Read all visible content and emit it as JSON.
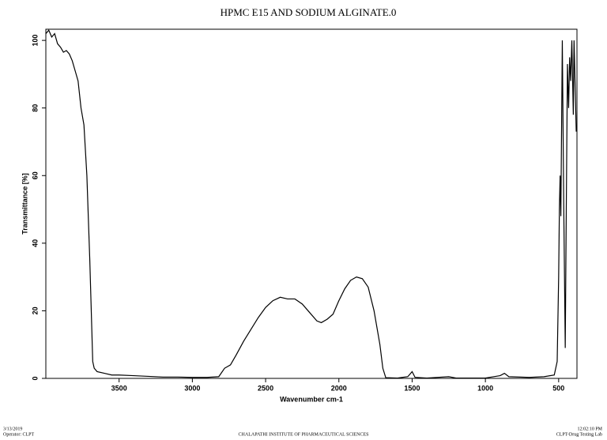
{
  "chart_data": {
    "type": "line",
    "title": "HPMC E15 AND SODIUM ALGINATE.0",
    "x_label": "Wavenumber cm-1",
    "y_label": "Transmittance [%]",
    "xlim": [
      4000,
      375
    ],
    "ylim": [
      0,
      103.3
    ],
    "xticks": [
      3500,
      3000,
      2500,
      2000,
      1500,
      1000,
      500
    ],
    "yticks": [
      0,
      20,
      40,
      60,
      80,
      100
    ],
    "color": "#000000",
    "x": [
      4000,
      3980,
      3960,
      3940,
      3920,
      3900,
      3880,
      3860,
      3840,
      3820,
      3800,
      3780,
      3760,
      3740,
      3720,
      3700,
      3690,
      3680,
      3670,
      3650,
      3600,
      3550,
      3500,
      3400,
      3300,
      3200,
      3100,
      3000,
      2900,
      2820,
      2780,
      2740,
      2700,
      2650,
      2600,
      2550,
      2500,
      2450,
      2400,
      2350,
      2300,
      2250,
      2200,
      2150,
      2120,
      2080,
      2040,
      2000,
      1960,
      1920,
      1880,
      1840,
      1800,
      1760,
      1720,
      1700,
      1680,
      1600,
      1530,
      1500,
      1480,
      1400,
      1250,
      1200,
      1000,
      900,
      870,
      840,
      700,
      600,
      530,
      510,
      500,
      495,
      490,
      485,
      475,
      465,
      455,
      448,
      440,
      432,
      425,
      418,
      410,
      400,
      395,
      380
    ],
    "values": [
      102,
      103,
      101,
      102,
      99,
      98,
      96.5,
      97,
      96,
      94,
      91,
      88,
      80,
      75,
      60,
      35,
      20,
      5,
      3,
      2,
      1.5,
      1,
      1,
      0.8,
      0.6,
      0.4,
      0.4,
      0.3,
      0.3,
      0.5,
      3,
      4,
      7,
      11,
      14.5,
      18,
      21,
      23,
      24,
      23.5,
      23.5,
      22,
      19.5,
      17,
      16.5,
      17.5,
      19,
      23,
      26.5,
      29,
      30,
      29.5,
      27,
      20,
      10,
      3,
      0.2,
      0.1,
      0.5,
      2,
      0.3,
      0.1,
      0.5,
      0.1,
      0.1,
      0.8,
      1.5,
      0.5,
      0.3,
      0.5,
      1,
      5,
      30,
      50,
      60,
      48,
      100,
      50,
      9,
      50,
      93,
      80,
      95,
      88,
      100,
      78,
      100,
      73
    ]
  },
  "footer": {
    "date": "3/13/2019",
    "operator": "Operator: CLPT",
    "institute": "CHALAPATHI INSTITUTE OF PHARMACEUTICAL SCIENCES",
    "time": "12:02:10 PM",
    "lab": "CLPT-Drug Testing Lab"
  }
}
